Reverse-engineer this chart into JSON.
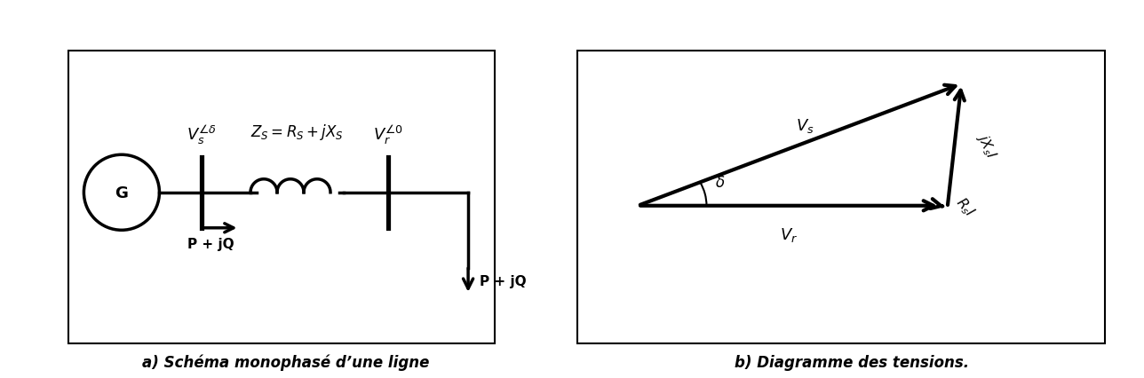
{
  "fig_width": 12.88,
  "fig_height": 4.27,
  "bg_color": "#ffffff",
  "border_color": "#000000",
  "line_color": "#000000",
  "caption_a": "a) Schéma monophasé d’une ligne",
  "caption_b": "b) Diagramme des tensions.",
  "Zs_label": "Z_S = R_S + jX_S",
  "Vs_label": "V_s",
  "Vr_label": "V_r",
  "PjQ_label": "P + jQ",
  "G_label": "G",
  "delta_label": "δ"
}
